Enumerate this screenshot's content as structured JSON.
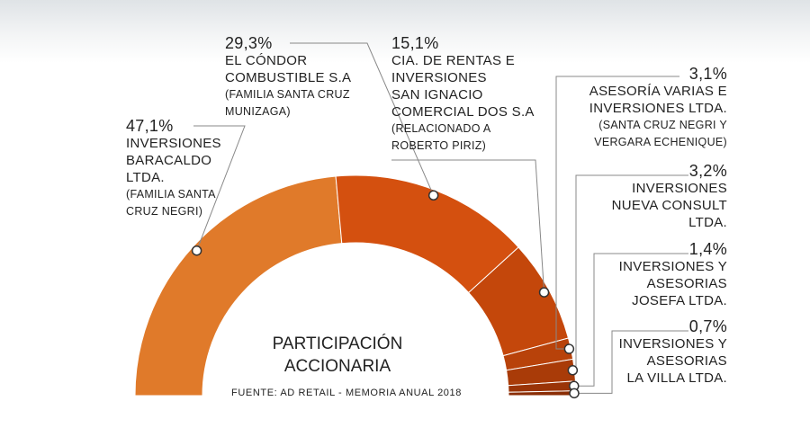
{
  "chart_data": {
    "type": "pie",
    "title": "PARTICIPACIÓN\nACCIONARIA",
    "source": "FUENTE: AD RETAIL - MEMORIA ANUAL 2018",
    "categories": [
      "INVERSIONES\nBARACALDO\nLTDA.",
      "EL CÓNDOR\nCOMBUSTIBLE S.A",
      "CIA. DE RENTAS E\nINVERSIONES\nSAN IGNACIO\nCOMERCIAL DOS S.A",
      "ASESORÍA VARIAS E\nINVERSIONES LTDA.",
      "INVERSIONES\nNUEVA CONSULT\nLTDA.",
      "INVERSIONES Y\nASESORIAS\nJOSEFA LTDA.",
      "INVERSIONES Y\nASESORIAS\nLA VILLA LTDA."
    ],
    "notes": [
      "(FAMILIA SANTA\nCRUZ NEGRI)",
      "(FAMILIA SANTA CRUZ\nMUNIZAGA)",
      "(RELACIONADO A\nROBERTO PIRIZ)",
      "(SANTA CRUZ NEGRI Y\nVERGARA ECHENIQUE)",
      null,
      null,
      null
    ],
    "values": [
      47.1,
      29.3,
      15.1,
      3.1,
      3.2,
      1.4,
      0.7
    ],
    "value_labels": [
      "47,1%",
      "29,3%",
      "15,1%",
      "3,1%",
      "3,2%",
      "1,4%",
      "0,7%"
    ],
    "colors": [
      "#e07a2a",
      "#d4500f",
      "#c4470b",
      "#b8420a",
      "#a93b08",
      "#9a3407",
      "#8a2d05"
    ]
  }
}
